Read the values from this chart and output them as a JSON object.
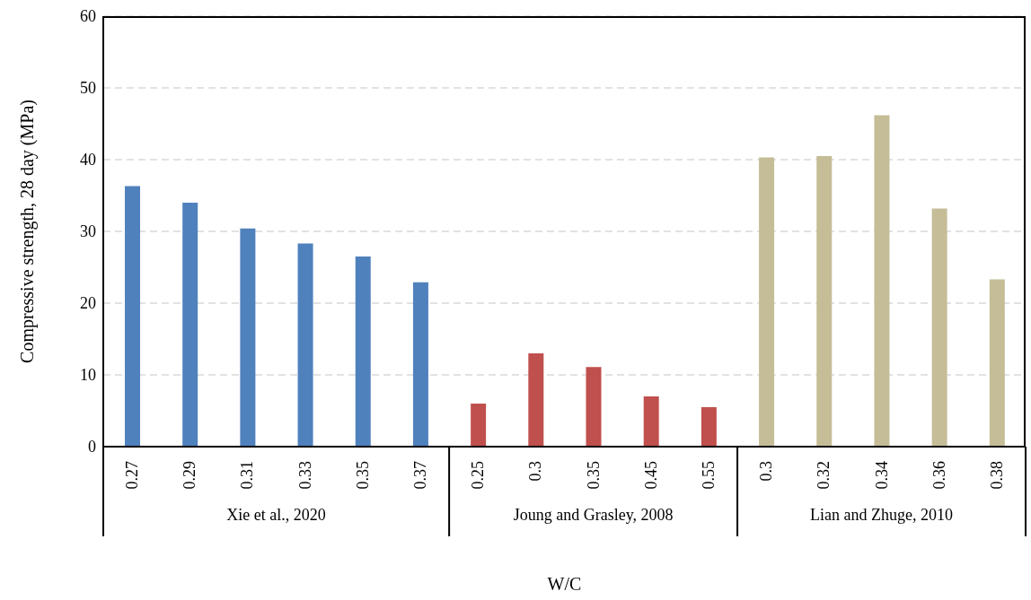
{
  "chart_data": {
    "type": "bar",
    "xlabel": "W/C",
    "ylabel": "Compressive strength, 28 day (MPa)",
    "categories": [
      "0.27",
      "0.29",
      "0.31",
      "0.33",
      "0.35",
      "0.37",
      "0.25",
      "0.3",
      "0.35",
      "0.45",
      "0.55",
      "0.3",
      "0.32",
      "0.34",
      "0.36",
      "0.38"
    ],
    "series": [
      {
        "color": "#4f81bd",
        "values": [
          36.3,
          34.0,
          30.4,
          28.3,
          26.5,
          22.9,
          null,
          null,
          null,
          null,
          null,
          null,
          null,
          null,
          null,
          null
        ]
      },
      {
        "color": "#c0504d",
        "values": [
          null,
          null,
          null,
          null,
          null,
          null,
          6.0,
          13.0,
          11.1,
          7.0,
          5.5,
          null,
          null,
          null,
          null,
          null
        ]
      },
      {
        "color": "#c4bd97",
        "values": [
          null,
          null,
          null,
          null,
          null,
          null,
          null,
          null,
          null,
          null,
          null,
          40.3,
          40.5,
          46.2,
          33.2,
          23.3
        ]
      }
    ],
    "annotations": [
      "Xie et al., 2020",
      "Joung and Grasley, 2008",
      "Lian and Zhuge, 2010"
    ],
    "ylim": [
      0,
      60
    ],
    "yticks": [
      0,
      10,
      20,
      30,
      40,
      50,
      60
    ],
    "grid": "y"
  }
}
